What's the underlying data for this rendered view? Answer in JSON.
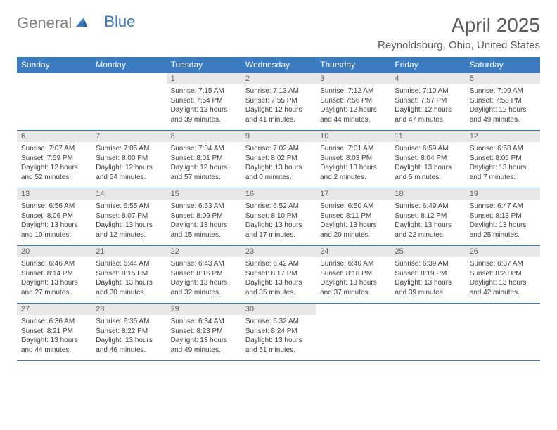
{
  "brand": {
    "part1": "General",
    "part2": "Blue"
  },
  "title": "April 2025",
  "location": "Reynoldsburg, Ohio, United States",
  "colors": {
    "header_bg": "#3b7bbf",
    "header_text": "#ffffff",
    "daynum_bg": "#e8e8e8",
    "daynum_text": "#606060",
    "body_text": "#404040",
    "border": "#3b7bbf",
    "logo_gray": "#808080",
    "logo_blue": "#3b7bbf",
    "title_color": "#5a5a5a"
  },
  "weekdays": [
    "Sunday",
    "Monday",
    "Tuesday",
    "Wednesday",
    "Thursday",
    "Friday",
    "Saturday"
  ],
  "weeks": [
    [
      null,
      null,
      {
        "n": "1",
        "sr": "7:15 AM",
        "ss": "7:54 PM",
        "dh": "12",
        "dm": "39"
      },
      {
        "n": "2",
        "sr": "7:13 AM",
        "ss": "7:55 PM",
        "dh": "12",
        "dm": "41"
      },
      {
        "n": "3",
        "sr": "7:12 AM",
        "ss": "7:56 PM",
        "dh": "12",
        "dm": "44"
      },
      {
        "n": "4",
        "sr": "7:10 AM",
        "ss": "7:57 PM",
        "dh": "12",
        "dm": "47"
      },
      {
        "n": "5",
        "sr": "7:09 AM",
        "ss": "7:58 PM",
        "dh": "12",
        "dm": "49"
      }
    ],
    [
      {
        "n": "6",
        "sr": "7:07 AM",
        "ss": "7:59 PM",
        "dh": "12",
        "dm": "52"
      },
      {
        "n": "7",
        "sr": "7:05 AM",
        "ss": "8:00 PM",
        "dh": "12",
        "dm": "54"
      },
      {
        "n": "8",
        "sr": "7:04 AM",
        "ss": "8:01 PM",
        "dh": "12",
        "dm": "57"
      },
      {
        "n": "9",
        "sr": "7:02 AM",
        "ss": "8:02 PM",
        "dh": "13",
        "dm": "0"
      },
      {
        "n": "10",
        "sr": "7:01 AM",
        "ss": "8:03 PM",
        "dh": "13",
        "dm": "2"
      },
      {
        "n": "11",
        "sr": "6:59 AM",
        "ss": "8:04 PM",
        "dh": "13",
        "dm": "5"
      },
      {
        "n": "12",
        "sr": "6:58 AM",
        "ss": "8:05 PM",
        "dh": "13",
        "dm": "7"
      }
    ],
    [
      {
        "n": "13",
        "sr": "6:56 AM",
        "ss": "8:06 PM",
        "dh": "13",
        "dm": "10"
      },
      {
        "n": "14",
        "sr": "6:55 AM",
        "ss": "8:07 PM",
        "dh": "13",
        "dm": "12"
      },
      {
        "n": "15",
        "sr": "6:53 AM",
        "ss": "8:09 PM",
        "dh": "13",
        "dm": "15"
      },
      {
        "n": "16",
        "sr": "6:52 AM",
        "ss": "8:10 PM",
        "dh": "13",
        "dm": "17"
      },
      {
        "n": "17",
        "sr": "6:50 AM",
        "ss": "8:11 PM",
        "dh": "13",
        "dm": "20"
      },
      {
        "n": "18",
        "sr": "6:49 AM",
        "ss": "8:12 PM",
        "dh": "13",
        "dm": "22"
      },
      {
        "n": "19",
        "sr": "6:47 AM",
        "ss": "8:13 PM",
        "dh": "13",
        "dm": "25"
      }
    ],
    [
      {
        "n": "20",
        "sr": "6:46 AM",
        "ss": "8:14 PM",
        "dh": "13",
        "dm": "27"
      },
      {
        "n": "21",
        "sr": "6:44 AM",
        "ss": "8:15 PM",
        "dh": "13",
        "dm": "30"
      },
      {
        "n": "22",
        "sr": "6:43 AM",
        "ss": "8:16 PM",
        "dh": "13",
        "dm": "32"
      },
      {
        "n": "23",
        "sr": "6:42 AM",
        "ss": "8:17 PM",
        "dh": "13",
        "dm": "35"
      },
      {
        "n": "24",
        "sr": "6:40 AM",
        "ss": "8:18 PM",
        "dh": "13",
        "dm": "37"
      },
      {
        "n": "25",
        "sr": "6:39 AM",
        "ss": "8:19 PM",
        "dh": "13",
        "dm": "39"
      },
      {
        "n": "26",
        "sr": "6:37 AM",
        "ss": "8:20 PM",
        "dh": "13",
        "dm": "42"
      }
    ],
    [
      {
        "n": "27",
        "sr": "6:36 AM",
        "ss": "8:21 PM",
        "dh": "13",
        "dm": "44"
      },
      {
        "n": "28",
        "sr": "6:35 AM",
        "ss": "8:22 PM",
        "dh": "13",
        "dm": "46"
      },
      {
        "n": "29",
        "sr": "6:34 AM",
        "ss": "8:23 PM",
        "dh": "13",
        "dm": "49"
      },
      {
        "n": "30",
        "sr": "6:32 AM",
        "ss": "8:24 PM",
        "dh": "13",
        "dm": "51"
      },
      null,
      null,
      null
    ]
  ],
  "labels": {
    "sunrise": "Sunrise: ",
    "sunset": "Sunset: ",
    "daylight1": "Daylight: ",
    "daylight2": " hours and ",
    "daylight3": " minutes."
  }
}
